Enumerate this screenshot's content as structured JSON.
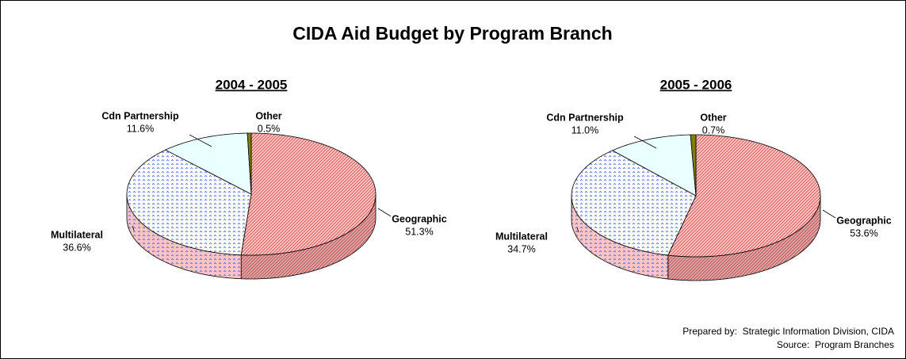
{
  "title": "CIDA Aid Budget by Program Branch",
  "notes": [
    "Prepared by:  Strategic Information Division, CIDA",
    "Source:  Program Branches"
  ],
  "chart_data": [
    {
      "type": "pie",
      "title": "2004 - 2005",
      "categories": [
        "Geographic",
        "Multilateral",
        "Cdn Partnership",
        "Other"
      ],
      "values": [
        51.3,
        36.6,
        11.6,
        0.5
      ],
      "value_labels": [
        "51.3%",
        "36.6%",
        "11.6%",
        "0.5%"
      ],
      "colors": [
        "#ffc4c4",
        "#ffffff",
        "#eaffff",
        "#808000"
      ]
    },
    {
      "type": "pie",
      "title": "2005 - 2006",
      "categories": [
        "Geographic",
        "Multilateral",
        "Cdn Partnership",
        "Other"
      ],
      "values": [
        53.6,
        34.7,
        11.0,
        0.7
      ],
      "value_labels": [
        "53.6%",
        "34.7%",
        "11.0%",
        "0.7%"
      ],
      "colors": [
        "#ffc4c4",
        "#ffffff",
        "#eaffff",
        "#808000"
      ]
    }
  ]
}
